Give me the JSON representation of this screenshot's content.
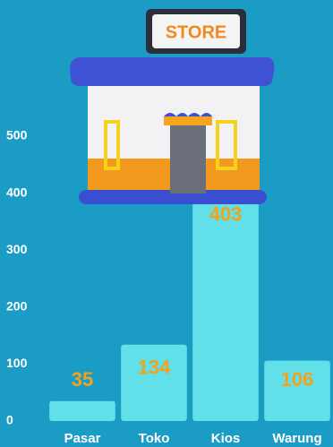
{
  "chart_data": {
    "type": "bar",
    "categories": [
      "Pasar",
      "Toko",
      "Kios",
      "Warung"
    ],
    "values": [
      35,
      134,
      403,
      106
    ],
    "color": "#62e0e9",
    "value_label_color": "#f2a31c",
    "ylim": [
      0,
      500
    ],
    "yticks": [
      0,
      100,
      200,
      300,
      400,
      500
    ],
    "grid": false,
    "sign_text": "STORE"
  }
}
